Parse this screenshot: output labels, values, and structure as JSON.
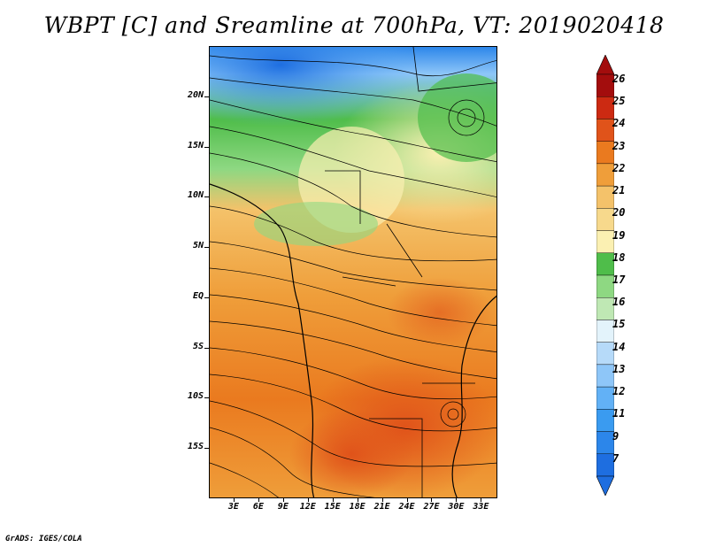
{
  "title": "WBPT [C] and Sreamline at 700hPa, VT: 2019020418",
  "footer": "GrADS: IGES/COLA",
  "lat_labels": [
    "20N",
    "15N",
    "10N",
    "5N",
    "EQ",
    "5S",
    "10S",
    "15S"
  ],
  "lon_labels": [
    "3E",
    "6E",
    "9E",
    "12E",
    "15E",
    "18E",
    "21E",
    "24E",
    "27E",
    "30E",
    "33E"
  ],
  "map_extent": {
    "lon_min": 0,
    "lon_max": 35,
    "lat_min": -20,
    "lat_max": 25
  },
  "colorbar": {
    "labels": [
      "7",
      "9",
      "11",
      "12",
      "13",
      "14",
      "15",
      "16",
      "17",
      "18",
      "19",
      "20",
      "21",
      "22",
      "23",
      "24",
      "25",
      "26"
    ],
    "colors": [
      "#1e6ee0",
      "#2c86ea",
      "#3a9bf0",
      "#62b1f6",
      "#8ec6f8",
      "#b6daf9",
      "#e3f3fb",
      "#bfe8b4",
      "#8ed882",
      "#4fbd4a",
      "#fbf0b2",
      "#f7d98c",
      "#f4c26a",
      "#ef9e3a",
      "#ea7a1f",
      "#e0531a",
      "#cc2a12",
      "#a30d0d"
    ]
  },
  "fields": {
    "variable": "WBPT [C]",
    "level": "700hPa",
    "valid_time": "2019020418"
  }
}
